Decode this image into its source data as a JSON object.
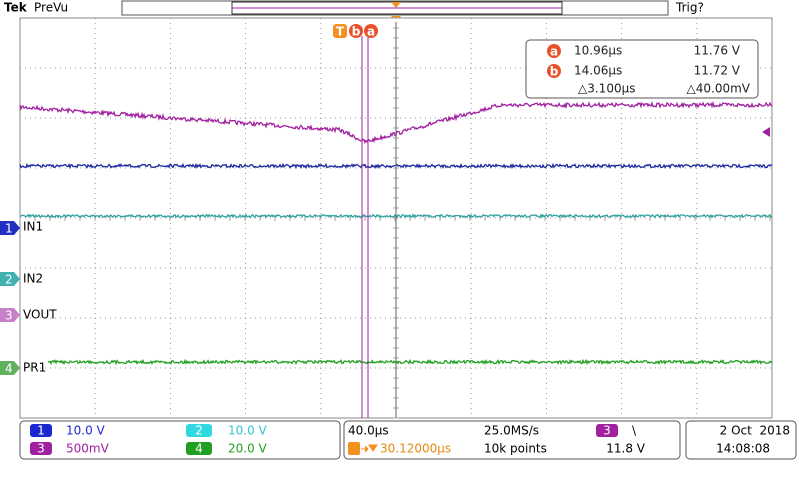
{
  "header": {
    "brand": "Tek",
    "mode": "PreVu",
    "trigger_status": "Trig?"
  },
  "cursor_markers": [
    "T",
    "b",
    "a"
  ],
  "cursor_readout": {
    "rows": [
      {
        "marker": "a",
        "time": "10.96µs",
        "value": "11.76 V"
      },
      {
        "marker": "b",
        "time": "14.06µs",
        "value": "11.72 V"
      }
    ],
    "delta_time": "△3.100µs",
    "delta_value": "△40.00mV"
  },
  "channel_labels": [
    {
      "number": "1",
      "label": "IN1"
    },
    {
      "number": "2",
      "label": "IN2"
    },
    {
      "number": "3",
      "label": "VOUT"
    },
    {
      "number": "4",
      "label": "PR1"
    }
  ],
  "footer": {
    "channels": [
      {
        "number": "1",
        "scale": "10.0 V"
      },
      {
        "number": "3",
        "scale": "500mV"
      },
      {
        "number": "2",
        "scale": "10.0 V"
      },
      {
        "number": "4",
        "scale": "20.0 V"
      }
    ],
    "timebase": {
      "scale": "40.0µs",
      "sample_rate": "25.0MS/s",
      "trigger_position": "30.12000µs",
      "record_length": "10k points"
    },
    "trigger": {
      "source": "3",
      "slope": "\\",
      "level": "11.8 V"
    },
    "date": "2 Oct  2018",
    "time": "14:08:08"
  }
}
